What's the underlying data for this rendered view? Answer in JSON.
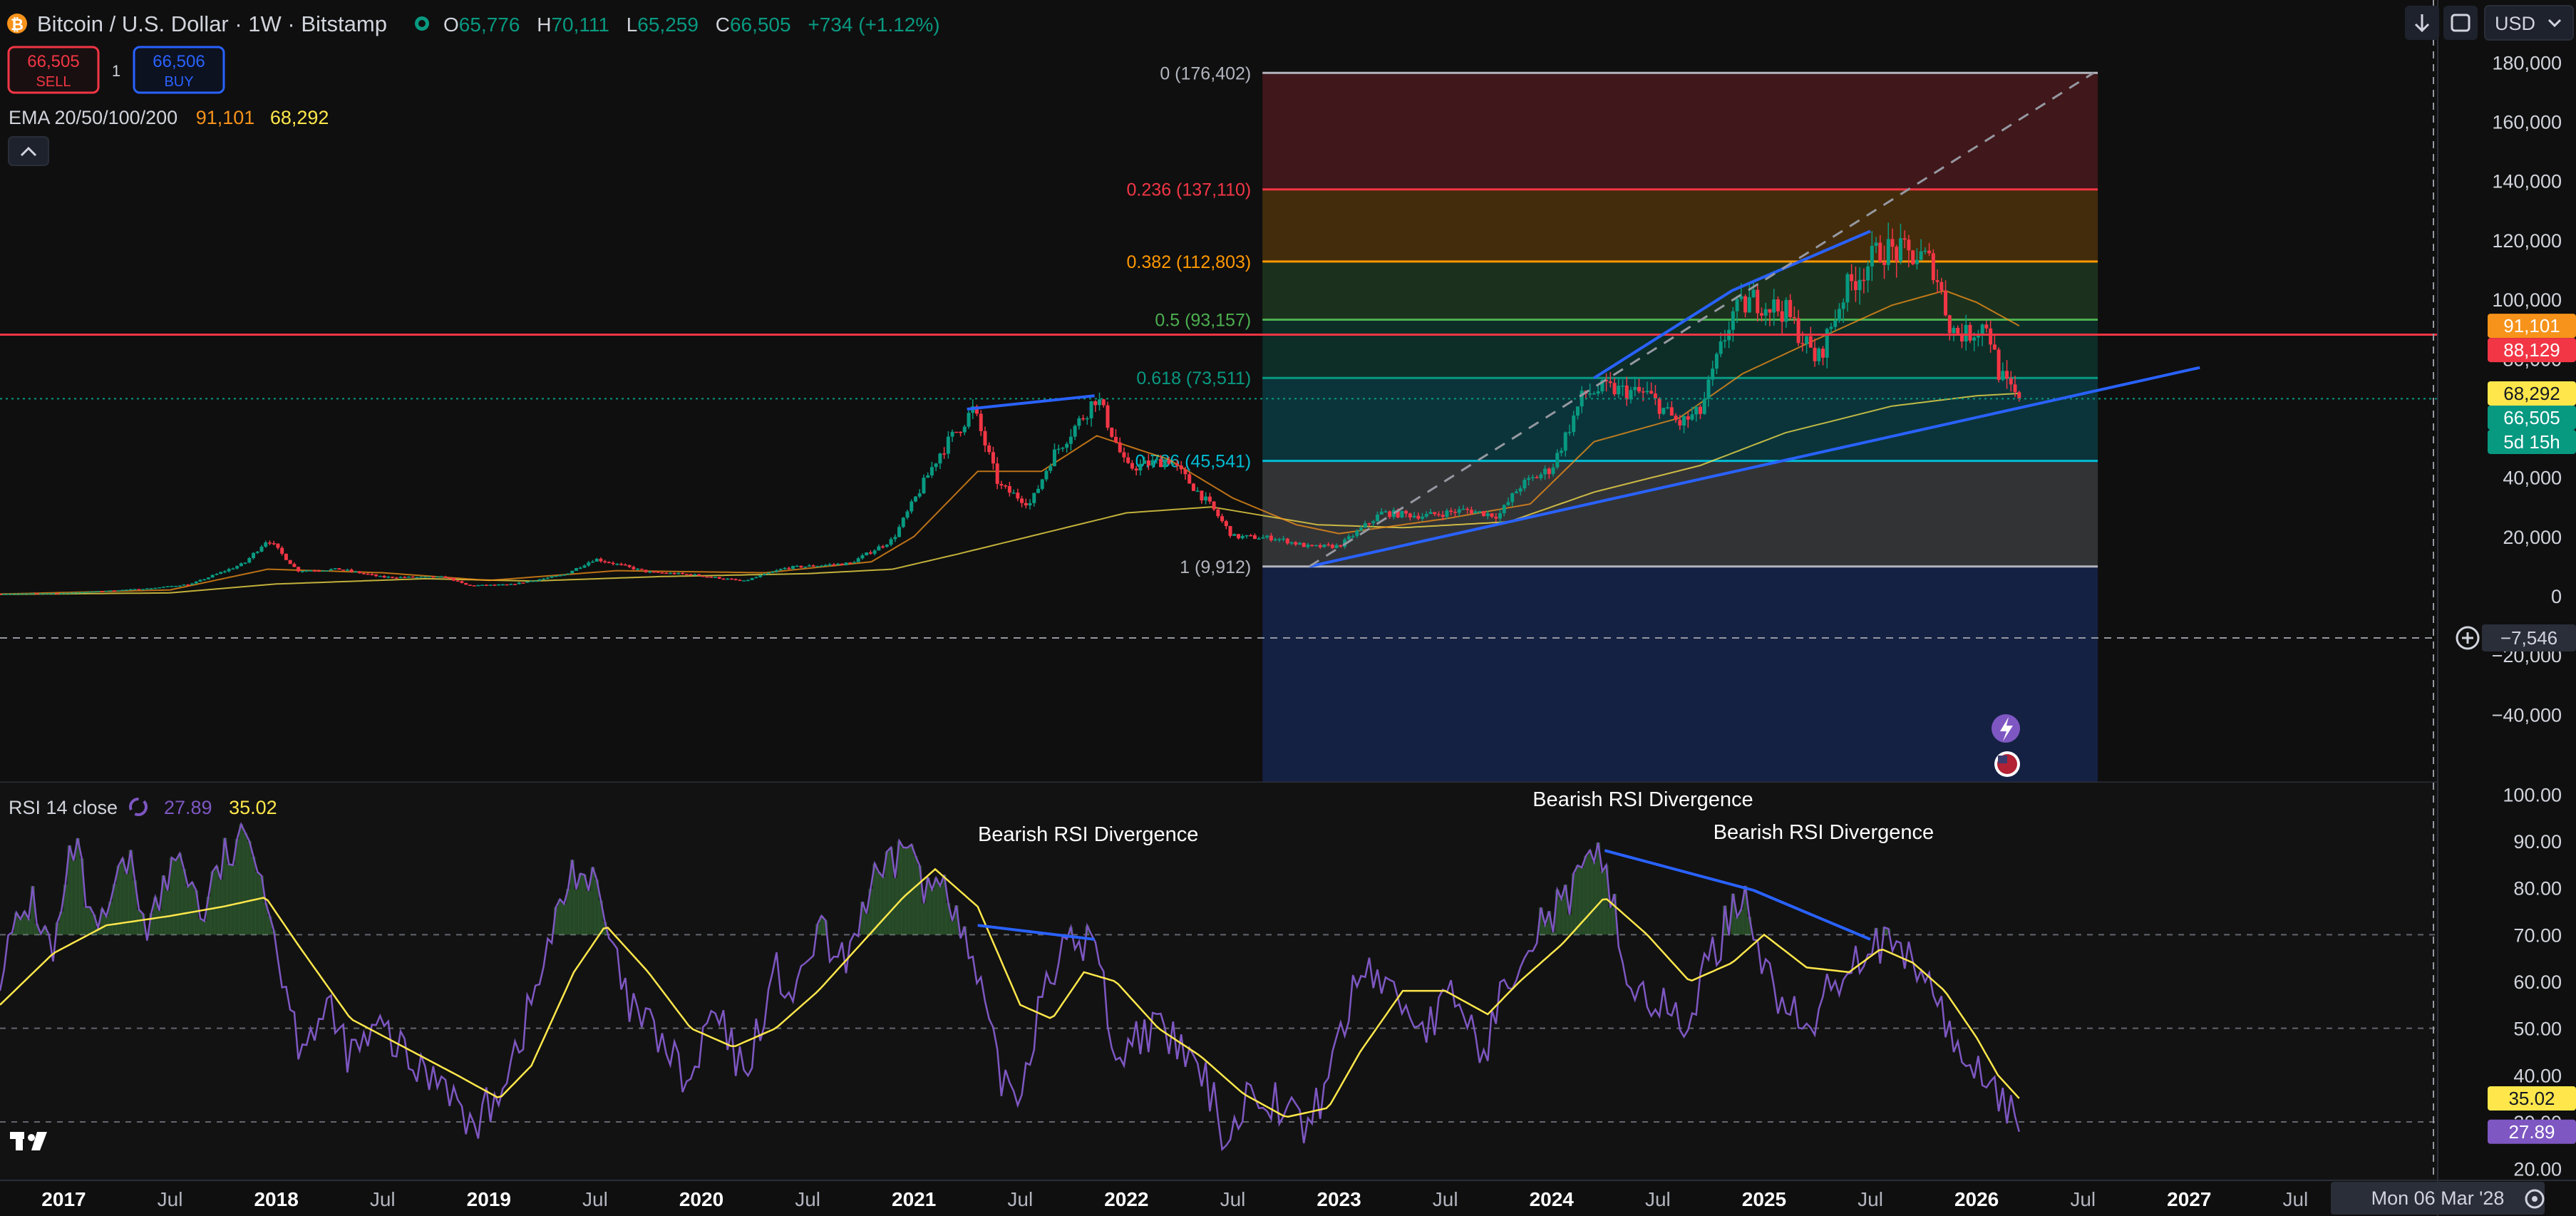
{
  "header": {
    "title": "Bitcoin / U.S. Dollar · 1W · Bitstamp",
    "o_label": "O",
    "o": "65,776",
    "h_label": "H",
    "h": "70,111",
    "l_label": "L",
    "l": "65,259",
    "c_label": "C",
    "c": "66,505",
    "change": "+734 (+1.12%)",
    "currency": "USD"
  },
  "trade": {
    "sell_price": "66,505",
    "sell_label": "SELL",
    "spread": "1",
    "buy_price": "66,506",
    "buy_label": "BUY"
  },
  "ema": {
    "label": "EMA 20/50/100/200",
    "v1": "91,101",
    "v2": "68,292"
  },
  "rsi_header": {
    "label": "RSI 14 close",
    "v1": "27.89",
    "v2": "35.02"
  },
  "price_axis": {
    "ticks": [
      "180,000",
      "160,000",
      "140,000",
      "120,000",
      "100,000",
      "80,000",
      "60,000",
      "40,000",
      "20,000",
      "0",
      "−20,000",
      "−40,000"
    ],
    "tick_values": [
      180000,
      160000,
      140000,
      120000,
      100000,
      80000,
      60000,
      40000,
      20000,
      0,
      -20000,
      -40000
    ],
    "crosshair_label": "−7,546",
    "badges": [
      {
        "label": "91,101",
        "color": "#f7931a",
        "value": 91101
      },
      {
        "label": "88,129",
        "color": "#f23645",
        "value": 88129
      },
      {
        "label": "68,292",
        "color": "#ffe74b",
        "value": 68292
      },
      {
        "label": "66,505",
        "color": "#089981",
        "value": 66505
      },
      {
        "label": "5d 15h",
        "color": "#089981",
        "value": 66505
      }
    ]
  },
  "rsi_axis": {
    "ticks": [
      "100.00",
      "90.00",
      "80.00",
      "70.00",
      "60.00",
      "50.00",
      "40.00",
      "30.00",
      "20.00"
    ],
    "tick_values": [
      100,
      90,
      80,
      70,
      60,
      50,
      40,
      30,
      20
    ],
    "badges": [
      {
        "label": "35.02",
        "color": "#ffe74b",
        "value": 35.02
      },
      {
        "label": "27.89",
        "color": "#7e57c2",
        "value": 27.89
      }
    ]
  },
  "time_axis": {
    "labels": [
      {
        "label": "2017",
        "t": 2017.0,
        "bold": true
      },
      {
        "label": "Jul",
        "t": 2017.5,
        "bold": false
      },
      {
        "label": "2018",
        "t": 2018.0,
        "bold": true
      },
      {
        "label": "Jul",
        "t": 2018.5,
        "bold": false
      },
      {
        "label": "2019",
        "t": 2019.0,
        "bold": true
      },
      {
        "label": "Jul",
        "t": 2019.5,
        "bold": false
      },
      {
        "label": "2020",
        "t": 2020.0,
        "bold": true
      },
      {
        "label": "Jul",
        "t": 2020.5,
        "bold": false
      },
      {
        "label": "2021",
        "t": 2021.0,
        "bold": true
      },
      {
        "label": "Jul",
        "t": 2021.5,
        "bold": false
      },
      {
        "label": "2022",
        "t": 2022.0,
        "bold": true
      },
      {
        "label": "Jul",
        "t": 2022.5,
        "bold": false
      },
      {
        "label": "2023",
        "t": 2023.0,
        "bold": true
      },
      {
        "label": "Jul",
        "t": 2023.5,
        "bold": false
      },
      {
        "label": "2024",
        "t": 2024.0,
        "bold": true
      },
      {
        "label": "Jul",
        "t": 2024.5,
        "bold": false
      },
      {
        "label": "2025",
        "t": 2025.0,
        "bold": true
      },
      {
        "label": "Jul",
        "t": 2025.5,
        "bold": false
      },
      {
        "label": "2026",
        "t": 2026.0,
        "bold": true
      },
      {
        "label": "Jul",
        "t": 2026.5,
        "bold": false
      },
      {
        "label": "2027",
        "t": 2027.0,
        "bold": true
      },
      {
        "label": "Jul",
        "t": 2027.5,
        "bold": false
      }
    ],
    "crosshair_label": "Mon 06 Mar '28"
  },
  "chart_data": {
    "type": "candlestick",
    "symbol": "Bitcoin / U.S. Dollar",
    "interval": "1W",
    "exchange": "Bitstamp",
    "x_range": [
      2016.7,
      2028.82
    ],
    "y_range": [
      -63000,
      201000
    ],
    "horizontal_line": {
      "value": 88129,
      "color": "#f23645"
    },
    "fib_retracement": {
      "t_start": 2022.64,
      "t_end": 2026.57,
      "levels": [
        {
          "ratio": "0",
          "label": "0 (176,402)",
          "value": 176402,
          "color": "#b2b5be"
        },
        {
          "ratio": "0.236",
          "label": "0.236 (137,110)",
          "value": 137110,
          "color": "#f23645"
        },
        {
          "ratio": "0.382",
          "label": "0.382 (112,803)",
          "value": 112803,
          "color": "#ff9800"
        },
        {
          "ratio": "0.5",
          "label": "0.5 (93,157)",
          "value": 93157,
          "color": "#4caf50"
        },
        {
          "ratio": "0.618",
          "label": "0.618 (73,511)",
          "value": 73511,
          "color": "#089981"
        },
        {
          "ratio": "0.786",
          "label": "0.786 (45,541)",
          "value": 45541,
          "color": "#00bcd4"
        },
        {
          "ratio": "1",
          "label": "1 (9,912)",
          "value": 9912,
          "color": "#b2b5be"
        }
      ],
      "extension_floor": -63000
    },
    "trendlines": [
      {
        "name": "support",
        "points": [
          [
            2022.86,
            9900
          ],
          [
            2027.05,
            77000
          ]
        ],
        "color": "#2962ff"
      },
      {
        "name": "bull-2021",
        "points": [
          [
            2021.25,
            63000
          ],
          [
            2021.85,
            67500
          ]
        ],
        "color": "#2962ff"
      },
      {
        "name": "bull-2024",
        "points": [
          [
            2024.2,
            73500
          ],
          [
            2024.85,
            103000
          ],
          [
            2025.5,
            123000
          ]
        ],
        "color": "#2962ff"
      },
      {
        "name": "fib-diagonal",
        "points": [
          [
            2022.86,
            9912
          ],
          [
            2026.55,
            176402
          ]
        ],
        "color": "#9598a1",
        "dashed": true
      }
    ],
    "price_anchors": [
      [
        2016.7,
        700
      ],
      [
        2017.0,
        950
      ],
      [
        2017.4,
        2500
      ],
      [
        2017.6,
        4000
      ],
      [
        2017.85,
        11000
      ],
      [
        2017.96,
        19200
      ],
      [
        2018.1,
        8500
      ],
      [
        2018.3,
        9000
      ],
      [
        2018.5,
        6300
      ],
      [
        2018.8,
        6300
      ],
      [
        2018.9,
        3500
      ],
      [
        2019.1,
        3800
      ],
      [
        2019.35,
        7000
      ],
      [
        2019.5,
        12500
      ],
      [
        2019.75,
        8000
      ],
      [
        2019.95,
        7200
      ],
      [
        2020.2,
        5000
      ],
      [
        2020.4,
        9500
      ],
      [
        2020.7,
        11000
      ],
      [
        2020.9,
        19000
      ],
      [
        2021.0,
        32000
      ],
      [
        2021.12,
        48000
      ],
      [
        2021.28,
        63000
      ],
      [
        2021.4,
        37000
      ],
      [
        2021.55,
        31000
      ],
      [
        2021.65,
        47000
      ],
      [
        2021.8,
        61000
      ],
      [
        2021.86,
        67500
      ],
      [
        2022.0,
        43000
      ],
      [
        2022.2,
        46000
      ],
      [
        2022.4,
        30000
      ],
      [
        2022.5,
        20000
      ],
      [
        2022.7,
        19500
      ],
      [
        2022.86,
        16500
      ],
      [
        2023.0,
        16800
      ],
      [
        2023.2,
        28000
      ],
      [
        2023.4,
        27000
      ],
      [
        2023.6,
        29000
      ],
      [
        2023.75,
        27000
      ],
      [
        2023.85,
        37000
      ],
      [
        2024.0,
        43000
      ],
      [
        2024.15,
        68000
      ],
      [
        2024.25,
        70000
      ],
      [
        2024.45,
        68000
      ],
      [
        2024.6,
        58000
      ],
      [
        2024.7,
        62000
      ],
      [
        2024.85,
        95000
      ],
      [
        2024.95,
        100000
      ],
      [
        2025.1,
        96000
      ],
      [
        2025.25,
        79000
      ],
      [
        2025.38,
        103000
      ],
      [
        2025.55,
        117000
      ],
      [
        2025.75,
        114000
      ],
      [
        2025.8,
        111000
      ],
      [
        2025.88,
        90000
      ],
      [
        2025.95,
        88000
      ],
      [
        2026.05,
        92000
      ],
      [
        2026.1,
        76000
      ],
      [
        2026.15,
        70000
      ],
      [
        2026.2,
        66505
      ]
    ],
    "ema_anchors": [
      [
        2016.7,
        600
      ],
      [
        2017.5,
        2000
      ],
      [
        2017.96,
        9000
      ],
      [
        2018.5,
        7800
      ],
      [
        2019.0,
        5200
      ],
      [
        2019.6,
        8500
      ],
      [
        2020.3,
        7800
      ],
      [
        2020.8,
        11500
      ],
      [
        2021.0,
        20000
      ],
      [
        2021.3,
        42000
      ],
      [
        2021.6,
        42000
      ],
      [
        2021.86,
        54000
      ],
      [
        2022.2,
        46000
      ],
      [
        2022.5,
        33000
      ],
      [
        2022.8,
        24000
      ],
      [
        2023.0,
        21000
      ],
      [
        2023.5,
        26000
      ],
      [
        2023.9,
        31000
      ],
      [
        2024.2,
        52000
      ],
      [
        2024.6,
        60000
      ],
      [
        2024.9,
        75000
      ],
      [
        2025.2,
        85000
      ],
      [
        2025.6,
        98000
      ],
      [
        2025.85,
        103000
      ],
      [
        2026.0,
        99000
      ],
      [
        2026.2,
        91101
      ]
    ],
    "ema2_anchors": [
      [
        2016.7,
        500
      ],
      [
        2017.5,
        1000
      ],
      [
        2018.0,
        4000
      ],
      [
        2018.7,
        5800
      ],
      [
        2019.2,
        5000
      ],
      [
        2019.8,
        6500
      ],
      [
        2020.5,
        7500
      ],
      [
        2020.9,
        9000
      ],
      [
        2021.2,
        14000
      ],
      [
        2021.6,
        21000
      ],
      [
        2022.0,
        28000
      ],
      [
        2022.4,
        30000
      ],
      [
        2022.9,
        24000
      ],
      [
        2023.3,
        23000
      ],
      [
        2023.8,
        25000
      ],
      [
        2024.2,
        35000
      ],
      [
        2024.7,
        44000
      ],
      [
        2025.1,
        55000
      ],
      [
        2025.6,
        64000
      ],
      [
        2026.0,
        67500
      ],
      [
        2026.2,
        68292
      ]
    ],
    "rsi": {
      "length": 14,
      "current": 27.89,
      "signal": 35.02,
      "overbought": 70,
      "middle": 50,
      "oversold": 30,
      "y_range": [
        17.5,
        102.5
      ],
      "anchors": [
        [
          2016.7,
          63
        ],
        [
          2016.85,
          78
        ],
        [
          2016.95,
          65
        ],
        [
          2017.05,
          90
        ],
        [
          2017.15,
          68
        ],
        [
          2017.3,
          86
        ],
        [
          2017.4,
          72
        ],
        [
          2017.55,
          88
        ],
        [
          2017.65,
          74
        ],
        [
          2017.75,
          86
        ],
        [
          2017.9,
          91
        ],
        [
          2018.0,
          68
        ],
        [
          2018.1,
          48
        ],
        [
          2018.25,
          53
        ],
        [
          2018.35,
          44
        ],
        [
          2018.5,
          50
        ],
        [
          2018.65,
          41
        ],
        [
          2018.8,
          40
        ],
        [
          2018.9,
          28
        ],
        [
          2019.0,
          33
        ],
        [
          2019.15,
          48
        ],
        [
          2019.3,
          70
        ],
        [
          2019.4,
          85
        ],
        [
          2019.5,
          80
        ],
        [
          2019.65,
          55
        ],
        [
          2019.8,
          48
        ],
        [
          2019.95,
          37
        ],
        [
          2020.05,
          54
        ],
        [
          2020.2,
          40
        ],
        [
          2020.35,
          62
        ],
        [
          2020.45,
          56
        ],
        [
          2020.55,
          72
        ],
        [
          2020.65,
          62
        ],
        [
          2020.8,
          80
        ],
        [
          2020.9,
          84
        ],
        [
          2020.97,
          92
        ],
        [
          2021.05,
          78
        ],
        [
          2021.15,
          84
        ],
        [
          2021.22,
          70
        ],
        [
          2021.3,
          60
        ],
        [
          2021.4,
          40
        ],
        [
          2021.5,
          36
        ],
        [
          2021.62,
          62
        ],
        [
          2021.75,
          68
        ],
        [
          2021.85,
          69
        ],
        [
          2021.95,
          44
        ],
        [
          2022.1,
          50
        ],
        [
          2022.25,
          46
        ],
        [
          2022.4,
          36
        ],
        [
          2022.47,
          26
        ],
        [
          2022.6,
          38
        ],
        [
          2022.72,
          34
        ],
        [
          2022.86,
          28
        ],
        [
          2023.0,
          48
        ],
        [
          2023.12,
          64
        ],
        [
          2023.25,
          58
        ],
        [
          2023.4,
          50
        ],
        [
          2023.55,
          57
        ],
        [
          2023.68,
          44
        ],
        [
          2023.8,
          62
        ],
        [
          2023.92,
          72
        ],
        [
          2024.05,
          76
        ],
        [
          2024.18,
          84
        ],
        [
          2024.25,
          88
        ],
        [
          2024.35,
          60
        ],
        [
          2024.5,
          55
        ],
        [
          2024.62,
          50
        ],
        [
          2024.75,
          65
        ],
        [
          2024.85,
          75
        ],
        [
          2024.92,
          80
        ],
        [
          2025.0,
          62
        ],
        [
          2025.1,
          55
        ],
        [
          2025.2,
          48
        ],
        [
          2025.32,
          60
        ],
        [
          2025.45,
          66
        ],
        [
          2025.5,
          69
        ],
        [
          2025.6,
          66
        ],
        [
          2025.72,
          63
        ],
        [
          2025.8,
          58
        ],
        [
          2025.9,
          45
        ],
        [
          2026.0,
          42
        ],
        [
          2026.1,
          37
        ],
        [
          2026.18,
          29
        ],
        [
          2026.2,
          27.89
        ]
      ],
      "signal_anchors": [
        [
          2016.7,
          55
        ],
        [
          2016.95,
          66
        ],
        [
          2017.2,
          72
        ],
        [
          2017.5,
          74
        ],
        [
          2017.75,
          76
        ],
        [
          2017.95,
          78
        ],
        [
          2018.1,
          68
        ],
        [
          2018.35,
          52
        ],
        [
          2018.6,
          46
        ],
        [
          2018.85,
          40
        ],
        [
          2019.05,
          35
        ],
        [
          2019.2,
          42
        ],
        [
          2019.4,
          62
        ],
        [
          2019.55,
          72
        ],
        [
          2019.75,
          62
        ],
        [
          2019.95,
          50
        ],
        [
          2020.15,
          46
        ],
        [
          2020.35,
          50
        ],
        [
          2020.55,
          58
        ],
        [
          2020.75,
          68
        ],
        [
          2020.95,
          78
        ],
        [
          2021.1,
          84
        ],
        [
          2021.3,
          76
        ],
        [
          2021.5,
          55
        ],
        [
          2021.65,
          52
        ],
        [
          2021.8,
          62
        ],
        [
          2021.95,
          60
        ],
        [
          2022.15,
          50
        ],
        [
          2022.35,
          44
        ],
        [
          2022.55,
          36
        ],
        [
          2022.75,
          31
        ],
        [
          2022.95,
          33
        ],
        [
          2023.1,
          45
        ],
        [
          2023.3,
          58
        ],
        [
          2023.5,
          58
        ],
        [
          2023.7,
          53
        ],
        [
          2023.85,
          60
        ],
        [
          2024.05,
          68
        ],
        [
          2024.25,
          78
        ],
        [
          2024.45,
          70
        ],
        [
          2024.65,
          60
        ],
        [
          2024.85,
          64
        ],
        [
          2025.0,
          70
        ],
        [
          2025.2,
          63
        ],
        [
          2025.4,
          62
        ],
        [
          2025.55,
          67
        ],
        [
          2025.7,
          64
        ],
        [
          2025.85,
          58
        ],
        [
          2026.0,
          48
        ],
        [
          2026.1,
          40
        ],
        [
          2026.2,
          35.02
        ]
      ]
    },
    "rsi_annotations": [
      {
        "label": "Bearish RSI Divergence",
        "t": 2021.82,
        "value": 90,
        "line": [
          [
            2021.3,
            72
          ],
          [
            2021.85,
            69
          ]
        ]
      },
      {
        "label": "Bearish RSI Divergence",
        "t": 2024.43,
        "value": 97.5,
        "line": [
          [
            2024.25,
            88
          ],
          [
            2024.95,
            79.5
          ]
        ]
      },
      {
        "label": "Bearish RSI Divergence",
        "t": 2025.28,
        "value": 90.5,
        "line": [
          [
            2024.95,
            79.5
          ],
          [
            2025.5,
            69
          ]
        ]
      }
    ]
  }
}
